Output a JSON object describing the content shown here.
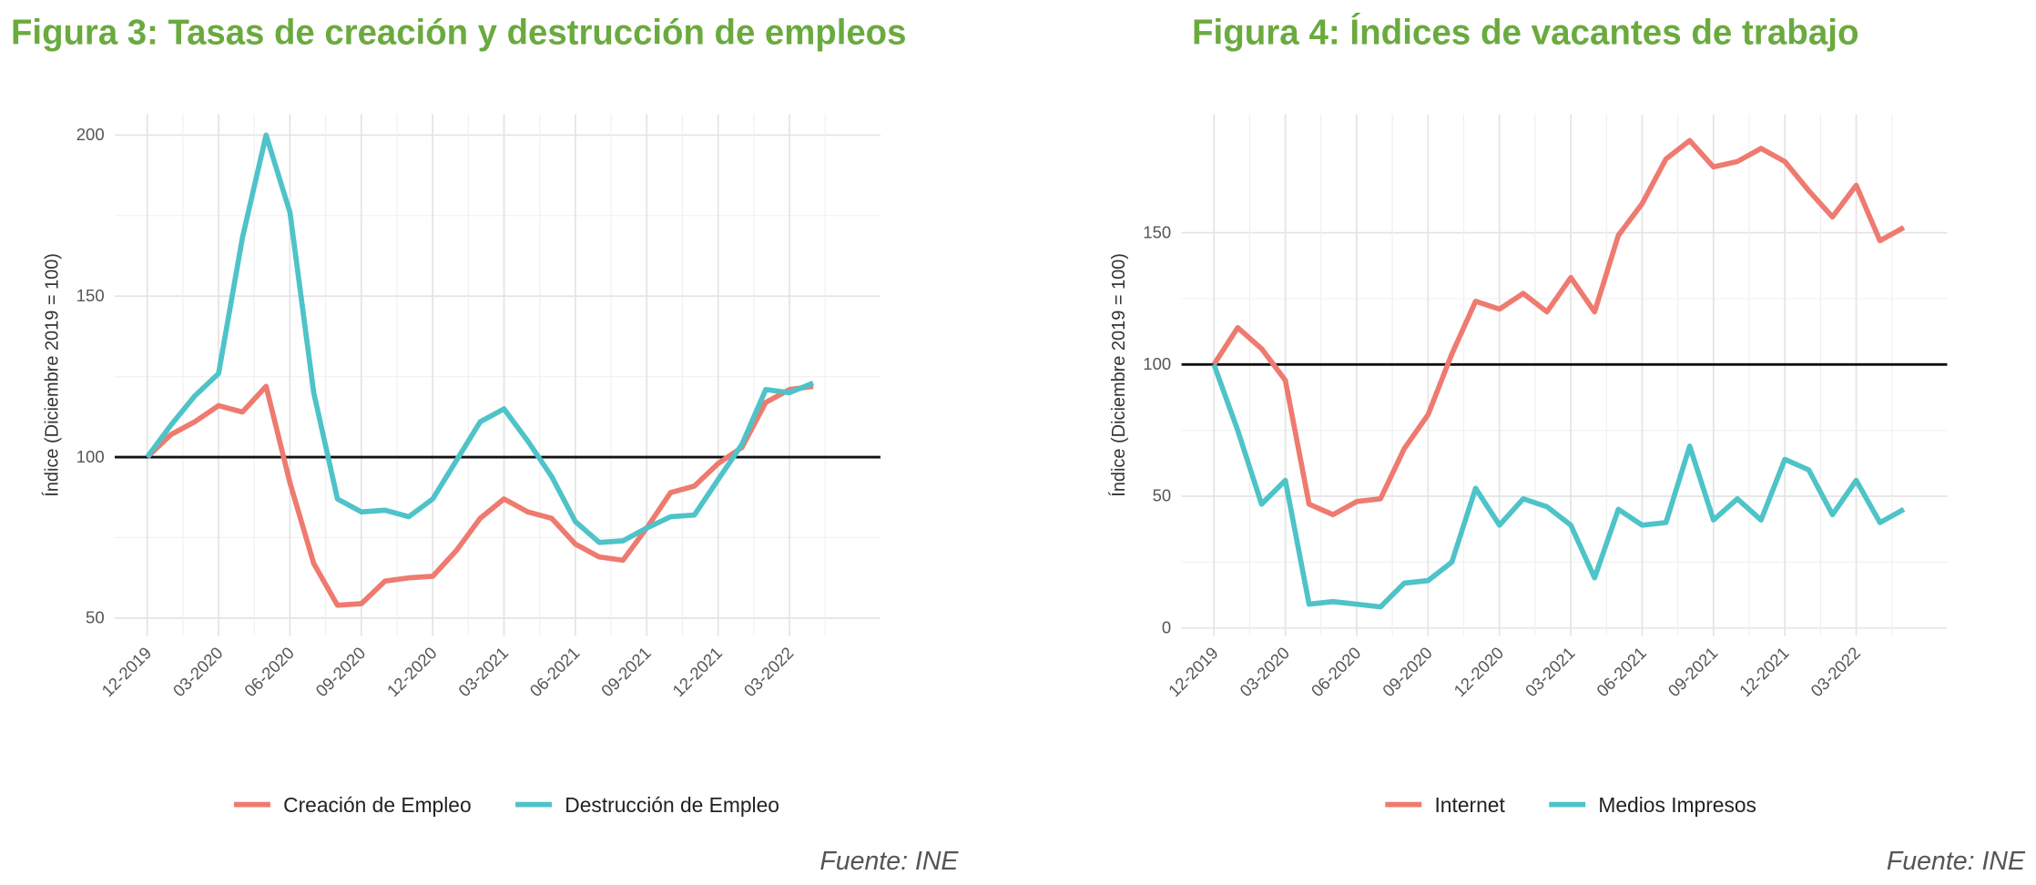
{
  "chart_data": [
    {
      "type": "line",
      "title": "Figura 3: Tasas de creación y destrucción de empleos",
      "y_label": "Índice (Diciembre 2019 = 100)",
      "source": "Fuente: INE",
      "categories": [
        "12-2019",
        null,
        null,
        "03-2020",
        null,
        null,
        "06-2020",
        null,
        null,
        "09-2020",
        null,
        null,
        "12-2020",
        null,
        null,
        "03-2021",
        null,
        null,
        "06-2021",
        null,
        null,
        "09-2021",
        null,
        null,
        "12-2021",
        null,
        null,
        "03-2022",
        null
      ],
      "series": [
        {
          "name": "Creación de Empleo",
          "color": "#ee7a70",
          "values": [
            100,
            107,
            111,
            116,
            114,
            122,
            92,
            67,
            54,
            54.5,
            61.5,
            62.5,
            63,
            71,
            81,
            87,
            83,
            81,
            73,
            69,
            68,
            78,
            89,
            91,
            98,
            103,
            117,
            121,
            122
          ]
        },
        {
          "name": "Destrucción de Empleo",
          "color": "#4ec3c8",
          "values": [
            100,
            110,
            119,
            126,
            168,
            200,
            176,
            120,
            87,
            83,
            83.5,
            81.5,
            87,
            99,
            111,
            115,
            105,
            94,
            80,
            73.5,
            74,
            78,
            81.5,
            82,
            93,
            104,
            121,
            120,
            123
          ]
        }
      ],
      "ylim": [
        44.5,
        206.5
      ],
      "yticks": [
        50,
        100,
        150,
        200
      ],
      "hline": 100,
      "grid": true,
      "legend": "bottom"
    },
    {
      "type": "line",
      "title": "Figura 4: Índices de vacantes de trabajo",
      "y_label": "Índice (Diciembre 2019 = 100)",
      "source": "Fuente: INE",
      "categories": [
        "12-2019",
        null,
        null,
        "03-2020",
        null,
        null,
        "06-2020",
        null,
        null,
        "09-2020",
        null,
        null,
        "12-2020",
        null,
        null,
        "03-2021",
        null,
        null,
        "06-2021",
        null,
        null,
        "09-2021",
        null,
        null,
        "12-2021",
        null,
        null,
        "03-2022",
        null,
        null
      ],
      "series": [
        {
          "name": "Internet",
          "color": "#ee7a70",
          "values": [
            100,
            114,
            106,
            94,
            47,
            43,
            48,
            49,
            68,
            81,
            104,
            124,
            121,
            127,
            120,
            133,
            120,
            149,
            161,
            178,
            185,
            175,
            177,
            182,
            177,
            166,
            156,
            168,
            147,
            152
          ]
        },
        {
          "name": "Medios Impresos",
          "color": "#4ec3c8",
          "values": [
            100,
            75,
            47,
            56,
            9,
            10,
            9,
            8,
            17,
            18,
            25,
            53,
            39,
            49,
            46,
            39,
            19,
            45,
            39,
            40,
            69,
            41,
            49,
            41,
            64,
            60,
            43,
            56,
            40,
            45
          ]
        }
      ],
      "ylim": [
        -3,
        195
      ],
      "yticks": [
        0,
        50,
        100,
        150
      ],
      "hline": 100,
      "grid": true,
      "legend": "bottom"
    }
  ]
}
